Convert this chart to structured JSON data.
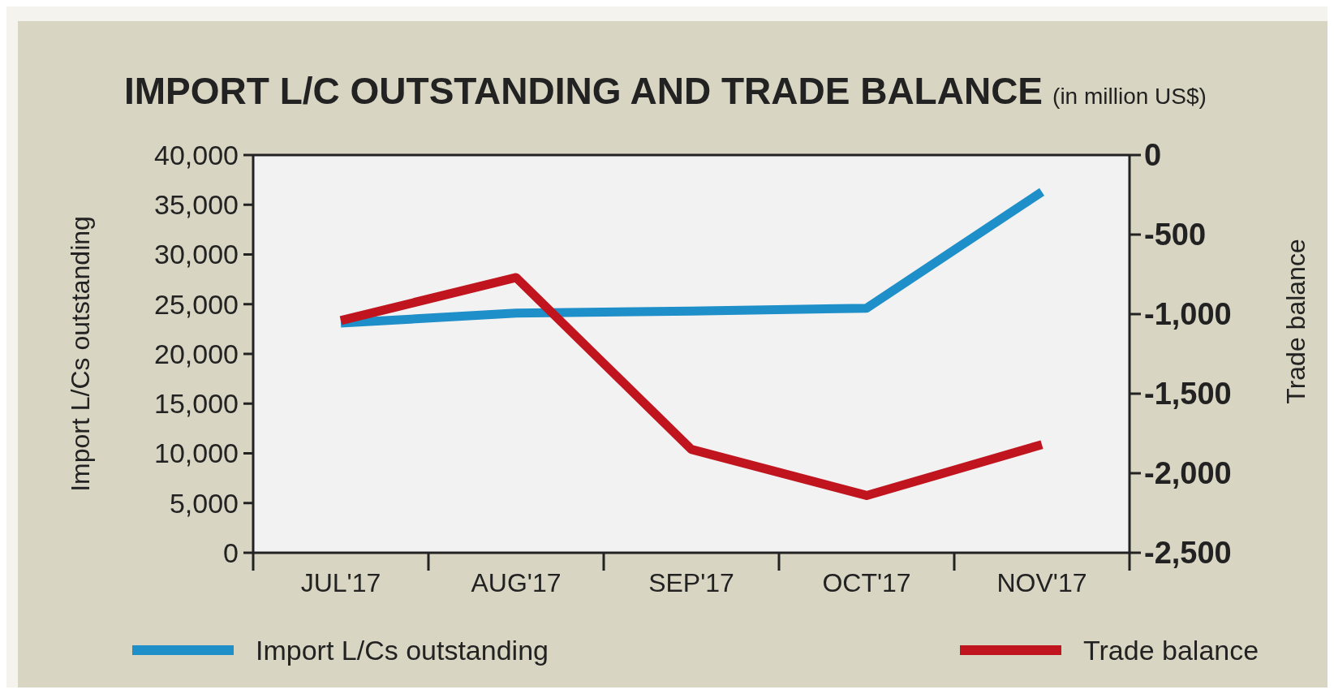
{
  "chart_data": {
    "type": "line",
    "title": "IMPORT L/C OUTSTANDING AND TRADE BALANCE",
    "subtitle": "(in million US$)",
    "ylabel": "Import L/Cs outstanding",
    "y2label": "Trade balance",
    "categories": [
      "JUL'17",
      "AUG'17",
      "SEP'17",
      "OCT'17",
      "NOV'17"
    ],
    "series": [
      {
        "name": "Import L/Cs outstanding",
        "color": "#1e8fc9",
        "values": [
          23100,
          24100,
          24300,
          24600,
          36300
        ]
      },
      {
        "name": "Trade balance",
        "color": "#c0151f",
        "axis": "y2",
        "values": [
          -1040,
          -770,
          -1850,
          -2140,
          -1820
        ]
      }
    ],
    "ylim": [
      0,
      40000
    ],
    "yticks": [
      {
        "value": 0,
        "label": "0"
      },
      {
        "value": 5000,
        "label": "5,000"
      },
      {
        "value": 10000,
        "label": "10,000"
      },
      {
        "value": 15000,
        "label": "15,000"
      },
      {
        "value": 20000,
        "label": "20,000"
      },
      {
        "value": 25000,
        "label": "25,000"
      },
      {
        "value": 30000,
        "label": "30,000"
      },
      {
        "value": 35000,
        "label": "35,000"
      },
      {
        "value": 40000,
        "label": "40,000"
      }
    ],
    "y2lim": [
      -2500,
      0
    ],
    "y2ticks": [
      {
        "value": -2500,
        "label": "-2,500"
      },
      {
        "value": -2000,
        "label": "-2,000"
      },
      {
        "value": -1500,
        "label": "-1,500"
      },
      {
        "value": -1000,
        "label": "-1,000"
      },
      {
        "value": -500,
        "label": "-500"
      },
      0
    ],
    "grid": false,
    "legend": "bottom",
    "marker": "none",
    "line_style": "solid"
  }
}
